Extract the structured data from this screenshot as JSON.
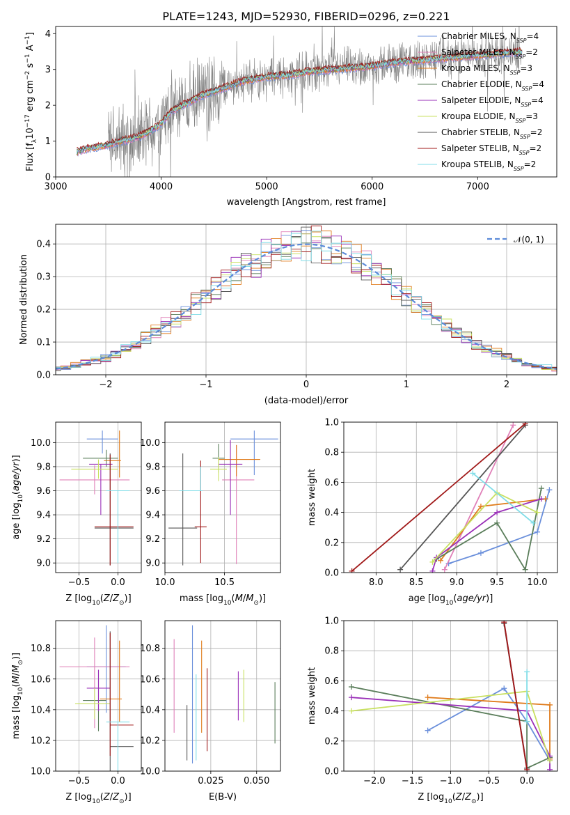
{
  "title": "PLATE=1243, MJD=52930, FIBERID=0296, z=0.221",
  "colors": {
    "Chabrier MILES": "#6a8fdb",
    "Salpeter MILES": "#e080b8",
    "Kroupa MILES": "#e07c1c",
    "Chabrier ELODIE": "#5a7d5a",
    "Salpeter ELODIE": "#9a30b8",
    "Kroupa ELODIE": "#c8e060",
    "Chabrier STELIB": "#555555",
    "Salpeter STELIB": "#a01818",
    "Kroupa STELIB": "#80dde8"
  },
  "chart_data": [
    {
      "id": "spectrum",
      "type": "line",
      "xlabel": "wavelength [Angstrom, rest frame]",
      "ylabel": "Flux [f_λ 10^-17 erg cm^-2 s^-1 A^-1]",
      "xlim": [
        3000,
        7750
      ],
      "ylim": [
        0,
        4.2
      ],
      "xticks": [
        "3000",
        "4000",
        "5000",
        "6000",
        "7000"
      ],
      "yticks": [
        "0",
        "1",
        "2",
        "3",
        "4"
      ],
      "legend_position": "top-right",
      "legend": [
        {
          "name": "Chabrier MILES",
          "label": "Chabrier MILES, N",
          "sub": "SSP",
          "tail": "=4"
        },
        {
          "name": "Salpeter MILES",
          "label": "Salpeter MILES, N",
          "sub": "SSP",
          "tail": "=2"
        },
        {
          "name": "Kroupa MILES",
          "label": "Kroupa MILES, N",
          "sub": "SSP",
          "tail": "=3"
        },
        {
          "name": "Chabrier ELODIE",
          "label": "Chabrier ELODIE, N",
          "sub": "SSP",
          "tail": "=4"
        },
        {
          "name": "Salpeter ELODIE",
          "label": "Salpeter ELODIE, N",
          "sub": "SSP",
          "tail": "=4"
        },
        {
          "name": "Kroupa ELODIE",
          "label": "Kroupa ELODIE, N",
          "sub": "SSP",
          "tail": "=3"
        },
        {
          "name": "Chabrier STELIB",
          "label": "Chabrier STELIB, N",
          "sub": "SSP",
          "tail": "=2"
        },
        {
          "name": "Salpeter STELIB",
          "label": "Salpeter STELIB, N",
          "sub": "SSP",
          "tail": "=2"
        },
        {
          "name": "Kroupa STELIB",
          "label": "Kroupa STELIB, N",
          "sub": "SSP",
          "tail": "=2"
        }
      ],
      "data_range_x": [
        3200,
        7420
      ],
      "model_anchor": {
        "x": [
          3200,
          3300,
          3400,
          3500,
          3600,
          3700,
          3800,
          3900,
          4000,
          4100,
          4200,
          4300,
          4400,
          4500,
          4600,
          4700,
          4800,
          4900,
          5000,
          5200,
          5400,
          5600,
          5800,
          6000,
          6200,
          6400,
          6600,
          6800,
          7000,
          7200,
          7420
        ],
        "y": [
          0.7,
          0.8,
          0.85,
          0.9,
          1.0,
          1.05,
          1.15,
          1.3,
          1.5,
          1.85,
          2.0,
          2.15,
          2.3,
          2.4,
          2.5,
          2.6,
          2.7,
          2.75,
          2.8,
          2.85,
          2.95,
          3.0,
          3.05,
          3.1,
          3.2,
          3.25,
          3.3,
          3.35,
          3.4,
          3.45,
          3.5
        ]
      }
    },
    {
      "id": "residuals",
      "type": "histogram",
      "xlabel": "(data-model)/error",
      "ylabel": "Normed distribution",
      "xlim": [
        -2.5,
        2.5
      ],
      "ylim": [
        0,
        0.46
      ],
      "xticks": [
        "−2",
        "−1",
        "0",
        "1",
        "2"
      ],
      "yticks": [
        "0.0",
        "0.1",
        "0.2",
        "0.3",
        "0.4"
      ],
      "bin_width": 0.1,
      "grid": true,
      "legend_label": "𝒩(0, 1)",
      "legend_position": "top-right"
    },
    {
      "id": "age_vs_Z",
      "type": "errorbar",
      "xlabel": "Z [log10(Z/Z⊙)]",
      "ylabel": "age  [log10(age/yr)]",
      "xlim": [
        -0.8,
        0.3
      ],
      "ylim": [
        8.92,
        10.17
      ],
      "xticks": [
        "−0.5",
        "0.0"
      ],
      "yticks": [
        "9.0",
        "9.2",
        "9.4",
        "9.6",
        "9.8",
        "10.0"
      ],
      "points": [
        {
          "name": "Chabrier MILES",
          "x": -0.2,
          "xerr": [
            0.2,
            0.2
          ],
          "y": 10.03,
          "yerr": [
            0.12,
            0.07
          ]
        },
        {
          "name": "Salpeter MILES",
          "x": -0.3,
          "xerr": [
            0.45,
            0.45
          ],
          "y": 9.69,
          "yerr": [
            0.12,
            0.12
          ]
        },
        {
          "name": "Kroupa MILES",
          "x": 0.02,
          "xerr": [
            0.2,
            0.02
          ],
          "y": 9.85,
          "yerr": [
            0.14,
            0.25
          ]
        },
        {
          "name": "Chabrier ELODIE",
          "x": -0.15,
          "xerr": [
            0.3,
            0.15
          ],
          "y": 9.87,
          "yerr": [
            0.07,
            0.07
          ]
        },
        {
          "name": "Salpeter ELODIE",
          "x": -0.22,
          "xerr": [
            0.15,
            0.15
          ],
          "y": 9.82,
          "yerr": [
            0.42,
            0.0
          ]
        },
        {
          "name": "Kroupa ELODIE",
          "x": -0.25,
          "xerr": [
            0.35,
            0.25
          ],
          "y": 9.78,
          "yerr": [
            0.08,
            0.08
          ]
        },
        {
          "name": "Chabrier STELIB",
          "x": -0.1,
          "xerr": [
            0.2,
            0.3
          ],
          "y": 9.29,
          "yerr": [
            0.31,
            0.62
          ]
        },
        {
          "name": "Salpeter STELIB",
          "x": -0.1,
          "xerr": [
            0.2,
            0.3
          ],
          "y": 9.3,
          "yerr": [
            0.32,
            0.6
          ]
        },
        {
          "name": "Kroupa STELIB",
          "x": 0.0,
          "xerr": [
            0.15,
            0.15
          ],
          "y": 9.6,
          "yerr": [
            0.6,
            0.0
          ]
        }
      ]
    },
    {
      "id": "age_vs_mass",
      "type": "errorbar",
      "xlabel": "mass [log10(M/M⊙)]",
      "ylabel": "",
      "xlim": [
        10.0,
        10.97
      ],
      "ylim": [
        8.92,
        10.17
      ],
      "xticks": [
        "10.0",
        "10.5"
      ],
      "yticks": [
        "9.0",
        "9.2",
        "9.4",
        "9.6",
        "9.8",
        "10.0"
      ],
      "points": [
        {
          "name": "Chabrier MILES",
          "x": 10.75,
          "xerr": [
            0.2,
            0.2
          ],
          "y": 10.03,
          "yerr": [
            0.3,
            0.07
          ]
        },
        {
          "name": "Salpeter MILES",
          "x": 10.6,
          "xerr": [
            0.12,
            0.15
          ],
          "y": 9.69,
          "yerr": [
            0.7,
            0.29
          ]
        },
        {
          "name": "Kroupa MILES",
          "x": 10.6,
          "xerr": [
            0.15,
            0.2
          ],
          "y": 9.86,
          "yerr": [
            0.14,
            0.12
          ]
        },
        {
          "name": "Chabrier ELODIE",
          "x": 10.45,
          "xerr": [
            0.05,
            0.05
          ],
          "y": 9.87,
          "yerr": [
            0.12,
            0.12
          ]
        },
        {
          "name": "Salpeter ELODIE",
          "x": 10.55,
          "xerr": [
            0.1,
            0.1
          ],
          "y": 9.82,
          "yerr": [
            0.42,
            0.2
          ]
        },
        {
          "name": "Kroupa ELODIE",
          "x": 10.45,
          "xerr": [
            0.07,
            0.07
          ],
          "y": 9.78,
          "yerr": [
            0.1,
            0.1
          ]
        },
        {
          "name": "Chabrier STELIB",
          "x": 10.15,
          "xerr": [
            0.12,
            0.12
          ],
          "y": 9.29,
          "yerr": [
            0.31,
            0.62
          ]
        },
        {
          "name": "Salpeter STELIB",
          "x": 10.3,
          "xerr": [
            0.05,
            0.05
          ],
          "y": 9.3,
          "yerr": [
            0.3,
            0.55
          ]
        },
        {
          "name": "Kroupa STELIB",
          "x": 10.3,
          "xerr": [
            0.18,
            0.02
          ],
          "y": 9.6,
          "yerr": [
            0.0,
            0.2
          ]
        }
      ]
    },
    {
      "id": "weight_vs_age",
      "type": "line",
      "xlabel": "age  [log10(age/yr)]",
      "ylabel": "mass weight",
      "xlim": [
        7.6,
        10.25
      ],
      "ylim": [
        0,
        1.0
      ],
      "xticks": [
        "8.0",
        "8.5",
        "9.0",
        "9.5",
        "10.0"
      ],
      "yticks": [
        "0.0",
        "0.2",
        "0.4",
        "0.6",
        "0.8",
        "1.0"
      ],
      "series": [
        {
          "name": "Chabrier MILES",
          "x": [
            10.15,
            10.0,
            9.3,
            8.9
          ],
          "y": [
            0.55,
            0.27,
            0.13,
            0.06
          ]
        },
        {
          "name": "Salpeter MILES",
          "x": [
            9.7,
            8.85
          ],
          "y": [
            0.98,
            0.02
          ]
        },
        {
          "name": "Kroupa MILES",
          "x": [
            10.1,
            9.3,
            8.8
          ],
          "y": [
            0.49,
            0.44,
            0.08
          ]
        },
        {
          "name": "Chabrier ELODIE",
          "x": [
            10.05,
            9.85,
            9.5,
            8.75
          ],
          "y": [
            0.56,
            0.02,
            0.33,
            0.09
          ]
        },
        {
          "name": "Salpeter ELODIE",
          "x": [
            10.05,
            9.5,
            8.75,
            8.7
          ],
          "y": [
            0.49,
            0.4,
            0.1,
            0.01
          ]
        },
        {
          "name": "Kroupa ELODIE",
          "x": [
            10.0,
            9.5,
            8.7
          ],
          "y": [
            0.4,
            0.53,
            0.07
          ]
        },
        {
          "name": "Chabrier STELIB",
          "x": [
            9.85,
            8.3
          ],
          "y": [
            0.98,
            0.02
          ]
        },
        {
          "name": "Salpeter STELIB",
          "x": [
            9.85,
            7.7
          ],
          "y": [
            0.99,
            0.01
          ]
        },
        {
          "name": "Kroupa STELIB",
          "x": [
            9.95,
            9.2
          ],
          "y": [
            0.33,
            0.66
          ]
        }
      ]
    },
    {
      "id": "mass_vs_Z",
      "type": "errorbar",
      "xlabel": "Z [log10(Z/Z⊙)]",
      "ylabel": "mass [log10(M/M⊙)]",
      "xlim": [
        -0.8,
        0.3
      ],
      "ylim": [
        10.0,
        10.98
      ],
      "xticks": [
        "−0.5",
        "0.0"
      ],
      "yticks": [
        "10.0",
        "10.2",
        "10.4",
        "10.6",
        "10.8"
      ],
      "points": [
        {
          "name": "Chabrier MILES",
          "x": -0.15,
          "xerr": [
            0.25,
            0.25
          ],
          "y": 10.68,
          "yerr": [
            0.3,
            0.27
          ]
        },
        {
          "name": "Salpeter MILES",
          "x": -0.3,
          "xerr": [
            0.45,
            0.45
          ],
          "y": 10.68,
          "yerr": [
            0.4,
            0.19
          ]
        },
        {
          "name": "Kroupa MILES",
          "x": 0.02,
          "xerr": [
            0.25,
            0.03
          ],
          "y": 10.47,
          "yerr": [
            0.15,
            0.38
          ]
        },
        {
          "name": "Chabrier ELODIE",
          "x": -0.25,
          "xerr": [
            0.2,
            0.1
          ],
          "y": 10.46,
          "yerr": [
            0.2,
            0.2
          ]
        },
        {
          "name": "Salpeter ELODIE",
          "x": -0.25,
          "xerr": [
            0.15,
            0.15
          ],
          "y": 10.54,
          "yerr": [
            0.15,
            0.12
          ]
        },
        {
          "name": "Kroupa ELODIE",
          "x": -0.3,
          "xerr": [
            0.25,
            0.2
          ],
          "y": 10.44,
          "yerr": [
            0.1,
            0.1
          ]
        },
        {
          "name": "Chabrier STELIB",
          "x": -0.1,
          "xerr": [
            0.0,
            0.3
          ],
          "y": 10.16,
          "yerr": [
            0.24,
            0.75
          ]
        },
        {
          "name": "Salpeter STELIB",
          "x": -0.1,
          "xerr": [
            0.0,
            0.3
          ],
          "y": 10.3,
          "yerr": [
            0.2,
            0.6
          ]
        },
        {
          "name": "Kroupa STELIB",
          "x": 0.0,
          "xerr": [
            0.15,
            0.15
          ],
          "y": 10.32,
          "yerr": [
            0.32,
            0.0
          ]
        }
      ]
    },
    {
      "id": "mass_vs_ebv",
      "type": "errorbar",
      "xlabel": "E(B-V)",
      "ylabel": "",
      "xlim": [
        0.0,
        0.063
      ],
      "ylim": [
        10.0,
        10.98
      ],
      "xticks": [
        "0.025",
        "0.050"
      ],
      "yticks": [
        "10.0",
        "10.2",
        "10.4",
        "10.6",
        "10.8"
      ],
      "points": [
        {
          "name": "Chabrier MILES",
          "x": 0.015,
          "xerr": [
            0,
            0
          ],
          "y": 10.5,
          "yerr": [
            0.45,
            0.45
          ]
        },
        {
          "name": "Salpeter MILES",
          "x": 0.005,
          "xerr": [
            0,
            0
          ],
          "y": 10.55,
          "yerr": [
            0.3,
            0.31
          ]
        },
        {
          "name": "Kroupa MILES",
          "x": 0.02,
          "xerr": [
            0,
            0
          ],
          "y": 10.55,
          "yerr": [
            0.3,
            0.3
          ]
        },
        {
          "name": "Chabrier ELODIE",
          "x": 0.06,
          "xerr": [
            0,
            0
          ],
          "y": 10.38,
          "yerr": [
            0.2,
            0.2
          ]
        },
        {
          "name": "Salpeter ELODIE",
          "x": 0.04,
          "xerr": [
            0,
            0
          ],
          "y": 10.49,
          "yerr": [
            0.16,
            0.16
          ]
        },
        {
          "name": "Kroupa ELODIE",
          "x": 0.043,
          "xerr": [
            0,
            0
          ],
          "y": 10.49,
          "yerr": [
            0.17,
            0.17
          ]
        },
        {
          "name": "Chabrier STELIB",
          "x": 0.012,
          "xerr": [
            0,
            0
          ],
          "y": 10.25,
          "yerr": [
            0.18,
            0.18
          ]
        },
        {
          "name": "Salpeter STELIB",
          "x": 0.023,
          "xerr": [
            0,
            0
          ],
          "y": 10.4,
          "yerr": [
            0.27,
            0.27
          ]
        },
        {
          "name": "Kroupa STELIB",
          "x": 0.017,
          "xerr": [
            0,
            0
          ],
          "y": 10.35,
          "yerr": [
            0.28,
            0.28
          ]
        }
      ]
    },
    {
      "id": "weight_vs_Z",
      "type": "line",
      "xlabel": "Z [log10(Z/Z⊙)]",
      "ylabel": "mass weight",
      "xlim": [
        -2.4,
        0.4
      ],
      "ylim": [
        0,
        1.0
      ],
      "xticks": [
        "−2.0",
        "−1.5",
        "−1.0",
        "−0.5",
        "0.0"
      ],
      "yticks": [
        "0.0",
        "0.2",
        "0.4",
        "0.6",
        "0.8",
        "1.0"
      ],
      "series": [
        {
          "name": "Chabrier MILES",
          "x": [
            -1.3,
            -0.3,
            0.0,
            0.3
          ],
          "y": [
            0.27,
            0.55,
            0.33,
            0.07
          ]
        },
        {
          "name": "Salpeter MILES",
          "x": [
            -0.3,
            0.0
          ],
          "y": [
            0.99,
            0.02
          ]
        },
        {
          "name": "Kroupa MILES",
          "x": [
            -1.3,
            0.3,
            0.3
          ],
          "y": [
            0.49,
            0.44,
            0.08
          ]
        },
        {
          "name": "Chabrier ELODIE",
          "x": [
            -2.3,
            0.0,
            0.0,
            0.3
          ],
          "y": [
            0.56,
            0.33,
            0.02,
            0.09
          ]
        },
        {
          "name": "Salpeter ELODIE",
          "x": [
            -2.3,
            0.0,
            0.3,
            0.3
          ],
          "y": [
            0.49,
            0.4,
            0.1,
            0.01
          ]
        },
        {
          "name": "Kroupa ELODIE",
          "x": [
            -2.3,
            0.0,
            0.3
          ],
          "y": [
            0.4,
            0.53,
            0.07
          ]
        },
        {
          "name": "Chabrier STELIB",
          "x": [
            -0.3,
            0.0
          ],
          "y": [
            0.98,
            0.02
          ]
        },
        {
          "name": "Salpeter STELIB",
          "x": [
            -0.3,
            0.0
          ],
          "y": [
            0.99,
            0.01
          ]
        },
        {
          "name": "Kroupa STELIB",
          "x": [
            0.0,
            0.0
          ],
          "y": [
            0.66,
            0.33
          ]
        }
      ]
    }
  ]
}
